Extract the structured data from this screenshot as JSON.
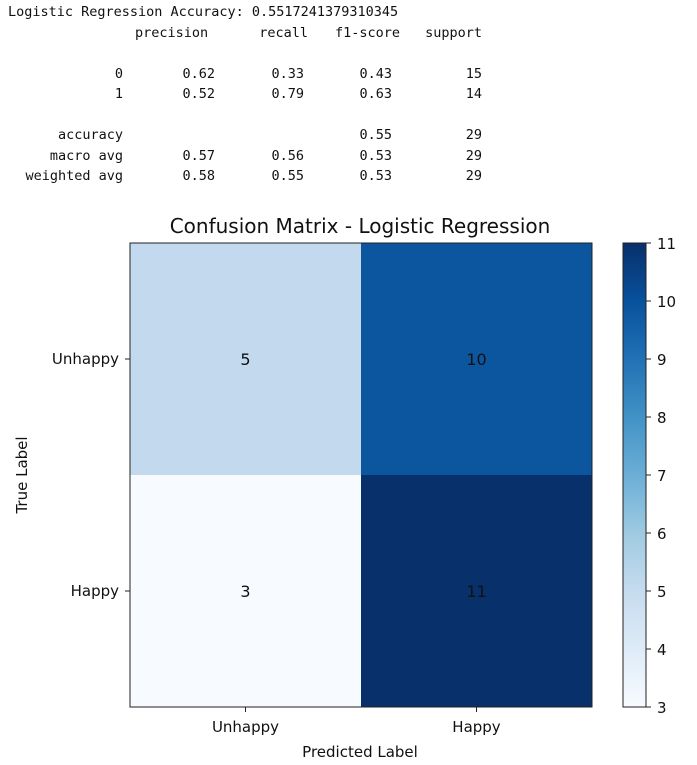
{
  "report": {
    "accuracy_line": "Logistic Regression Accuracy: 0.5517241379310345",
    "columns": [
      "precision",
      "recall",
      "f1-score",
      "support"
    ],
    "rows": [
      {
        "label": "0",
        "precision": "0.62",
        "recall": "0.33",
        "f1": "0.43",
        "support": "15"
      },
      {
        "label": "1",
        "precision": "0.52",
        "recall": "0.79",
        "f1": "0.63",
        "support": "14"
      },
      {
        "label": "",
        "precision": "",
        "recall": "",
        "f1": "",
        "support": ""
      },
      {
        "label": "accuracy",
        "precision": "",
        "recall": "",
        "f1": "0.55",
        "support": "29"
      },
      {
        "label": "macro avg",
        "precision": "0.57",
        "recall": "0.56",
        "f1": "0.53",
        "support": "29"
      },
      {
        "label": "weighted avg",
        "precision": "0.58",
        "recall": "0.55",
        "f1": "0.53",
        "support": "29"
      }
    ]
  },
  "chart_data": {
    "type": "heatmap",
    "title": "Confusion Matrix - Logistic Regression",
    "xlabel": "Predicted Label",
    "ylabel": "True Label",
    "x_categories": [
      "Unhappy",
      "Happy"
    ],
    "y_categories": [
      "Unhappy",
      "Happy"
    ],
    "values": [
      [
        5,
        10
      ],
      [
        3,
        11
      ]
    ],
    "colormap": "Blues",
    "vmin": 3,
    "vmax": 11,
    "colorbar_ticks": [
      3,
      4,
      5,
      6,
      7,
      8,
      9,
      10,
      11
    ],
    "colors": {
      "3": "#f7fbff",
      "5": "#c2d9ee",
      "10": "#0c56a0",
      "11": "#08306b"
    }
  }
}
